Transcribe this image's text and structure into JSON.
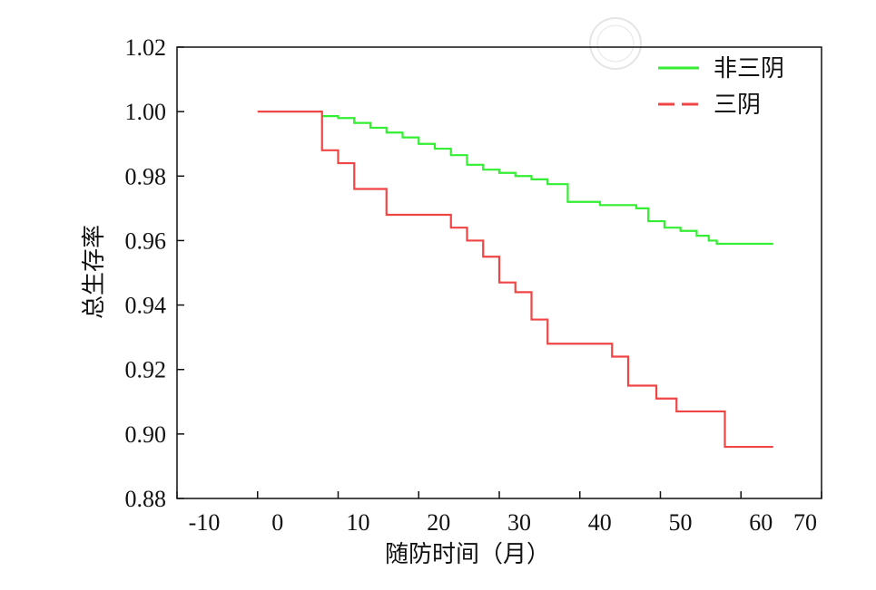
{
  "chart_data": {
    "type": "line",
    "title": "",
    "xlabel": "随防时间（月）",
    "ylabel": "总生存率",
    "xlim": [
      -10,
      70
    ],
    "ylim": [
      0.88,
      1.02
    ],
    "xticks": [
      "-10",
      "0",
      "10",
      "20",
      "30",
      "40",
      "50",
      "60",
      "70"
    ],
    "yticks": [
      "0.88",
      "0.90",
      "0.92",
      "0.94",
      "0.96",
      "0.98",
      "1.00",
      "1.02"
    ],
    "legend_position": "top-right",
    "step": true,
    "series": [
      {
        "name": "非三阴",
        "color": "#33ee33",
        "style": "solid",
        "x": [
          8,
          10,
          12,
          14,
          16,
          18,
          20,
          22,
          24,
          26,
          28,
          30,
          32,
          34,
          36,
          38.5,
          42.5,
          47,
          48.5,
          50.5,
          52.5,
          54.5,
          56,
          57,
          64
        ],
        "y": [
          0.9986,
          0.998,
          0.9965,
          0.995,
          0.9935,
          0.992,
          0.99,
          0.9885,
          0.9865,
          0.9835,
          0.982,
          0.981,
          0.98,
          0.979,
          0.9775,
          0.972,
          0.971,
          0.97,
          0.966,
          0.964,
          0.963,
          0.9615,
          0.96,
          0.959,
          0.959
        ]
      },
      {
        "name": "三阴",
        "color": "#f04545",
        "style": "dashed",
        "x": [
          0,
          8,
          10,
          12,
          16,
          24,
          26,
          28,
          30,
          32,
          34,
          36,
          44,
          46,
          49.5,
          52,
          58,
          64
        ],
        "y": [
          1.0,
          0.988,
          0.984,
          0.976,
          0.968,
          0.964,
          0.96,
          0.955,
          0.947,
          0.944,
          0.9355,
          0.928,
          0.924,
          0.915,
          0.911,
          0.907,
          0.896,
          0.896
        ]
      }
    ]
  }
}
